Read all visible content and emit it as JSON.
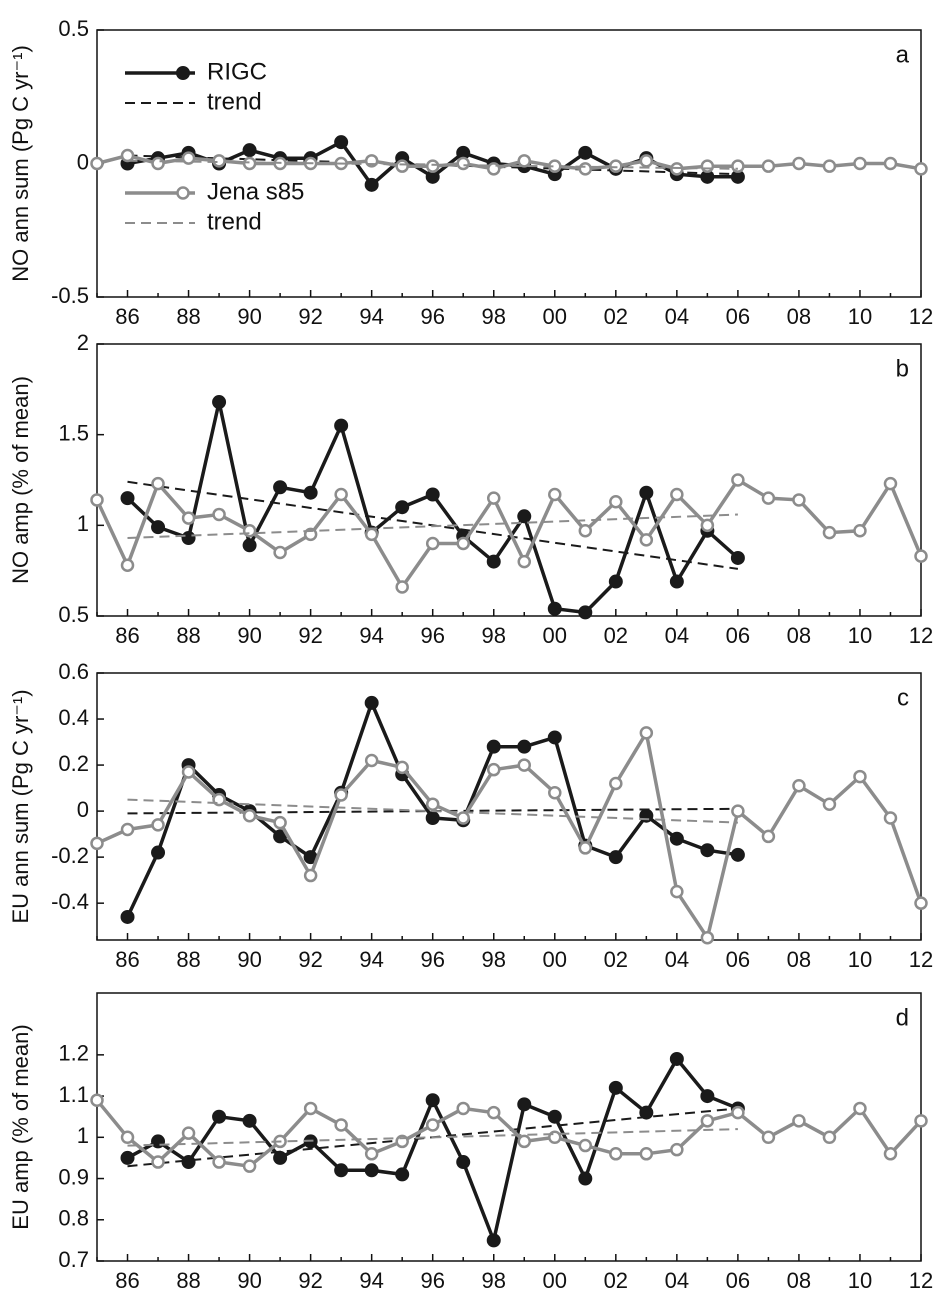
{
  "chart_data": [
    {
      "type": "line",
      "annotation": "a",
      "y_label": "NO ann sum (Pg C yr⁻¹)",
      "legend": "upper left",
      "categories": [
        null,
        "86",
        null,
        "88",
        null,
        "90",
        null,
        "92",
        null,
        "94",
        null,
        "96",
        null,
        "98",
        null,
        "00",
        null,
        "02",
        null,
        "04",
        null,
        "06",
        null,
        "08",
        null,
        "10",
        null,
        "12"
      ],
      "ylim": [
        -0.5,
        0.5
      ],
      "yticks": [
        -0.5,
        0,
        0.5
      ],
      "series": [
        {
          "name": "RIGC",
          "color": "#1a1a1a",
          "marker": "filled",
          "values": [
            null,
            0.0,
            0.02,
            0.04,
            0.0,
            0.05,
            0.02,
            0.02,
            0.08,
            -0.08,
            0.02,
            -0.05,
            0.04,
            0.0,
            -0.01,
            -0.04,
            0.04,
            -0.02,
            0.02,
            -0.04,
            -0.05,
            -0.05,
            null,
            null,
            null,
            null,
            null,
            null
          ]
        },
        {
          "name": "trend",
          "color": "#1a1a1a",
          "dashed": true,
          "x": [
            "86",
            "06"
          ],
          "values": [
            0.03,
            -0.04
          ]
        },
        {
          "name": "Jena s85",
          "color": "#8c8c8c",
          "marker": "open",
          "values": [
            0.0,
            0.03,
            0.0,
            0.02,
            0.01,
            0.0,
            0.0,
            0.0,
            0.0,
            0.01,
            -0.01,
            -0.01,
            0.0,
            -0.02,
            0.01,
            -0.01,
            -0.02,
            -0.01,
            0.01,
            -0.02,
            -0.01,
            -0.01,
            -0.01,
            0.0,
            -0.01,
            0.0,
            0.0,
            -0.02
          ]
        },
        {
          "name": "trend",
          "color": "#8c8c8c",
          "dashed": true,
          "x": [
            "86",
            "06"
          ],
          "values": [
            0.01,
            -0.02
          ]
        }
      ]
    },
    {
      "type": "line",
      "annotation": "b",
      "y_label": "NO amp (% of mean)",
      "categories": [
        null,
        "86",
        null,
        "88",
        null,
        "90",
        null,
        "92",
        null,
        "94",
        null,
        "96",
        null,
        "98",
        null,
        "00",
        null,
        "02",
        null,
        "04",
        null,
        "06",
        null,
        "08",
        null,
        "10",
        null,
        "12"
      ],
      "ylim": [
        0.5,
        2
      ],
      "yticks": [
        0.5,
        1,
        1.5,
        2
      ],
      "series": [
        {
          "color": "#1a1a1a",
          "marker": "filled",
          "values": [
            null,
            1.15,
            0.99,
            0.93,
            1.68,
            0.89,
            1.21,
            1.18,
            1.55,
            0.96,
            1.1,
            1.17,
            0.94,
            0.8,
            1.05,
            0.54,
            0.52,
            0.69,
            1.18,
            0.69,
            0.97,
            0.82,
            null,
            null,
            null,
            null,
            null,
            null
          ]
        },
        {
          "color": "#1a1a1a",
          "dashed": true,
          "x": [
            "86",
            "06"
          ],
          "values": [
            1.24,
            0.76
          ]
        },
        {
          "color": "#8c8c8c",
          "marker": "open",
          "values": [
            1.14,
            0.78,
            1.23,
            1.04,
            1.06,
            0.97,
            0.85,
            0.95,
            1.17,
            0.95,
            0.66,
            0.9,
            0.9,
            1.15,
            0.8,
            1.17,
            0.97,
            1.13,
            0.92,
            1.17,
            1.0,
            1.25,
            1.15,
            1.14,
            0.96,
            0.97,
            1.23,
            0.83
          ]
        },
        {
          "color": "#8c8c8c",
          "dashed": true,
          "x": [
            "86",
            "06"
          ],
          "values": [
            0.93,
            1.06
          ]
        }
      ]
    },
    {
      "type": "line",
      "annotation": "c",
      "y_label": "EU ann sum (Pg C yr⁻¹)",
      "categories": [
        null,
        "86",
        null,
        "88",
        null,
        "90",
        null,
        "92",
        null,
        "94",
        null,
        "96",
        null,
        "98",
        null,
        "00",
        null,
        "02",
        null,
        "04",
        null,
        "06",
        null,
        "08",
        null,
        "10",
        null,
        "12"
      ],
      "ylim": [
        -0.56,
        0.6
      ],
      "yticks": [
        -0.4,
        -0.2,
        0,
        0.2,
        0.4,
        0.6
      ],
      "series": [
        {
          "color": "#1a1a1a",
          "marker": "filled",
          "values": [
            null,
            -0.46,
            -0.18,
            0.2,
            0.07,
            0.0,
            -0.11,
            -0.2,
            0.08,
            0.47,
            0.16,
            -0.03,
            -0.04,
            0.28,
            0.28,
            0.32,
            -0.15,
            -0.2,
            -0.02,
            -0.12,
            -0.17,
            -0.19,
            null,
            null,
            null,
            null,
            null,
            null
          ]
        },
        {
          "color": "#1a1a1a",
          "dashed": true,
          "x": [
            "86",
            "06"
          ],
          "values": [
            -0.01,
            0.01
          ]
        },
        {
          "color": "#8c8c8c",
          "marker": "open",
          "values": [
            -0.14,
            -0.08,
            -0.06,
            0.17,
            0.05,
            -0.02,
            -0.05,
            -0.28,
            0.07,
            0.22,
            0.19,
            0.03,
            -0.03,
            0.18,
            0.2,
            0.08,
            -0.16,
            0.12,
            0.34,
            -0.35,
            -0.55,
            0.0,
            -0.11,
            0.11,
            0.03,
            0.15,
            -0.03,
            -0.4
          ]
        },
        {
          "color": "#8c8c8c",
          "dashed": true,
          "x": [
            "86",
            "06"
          ],
          "values": [
            0.05,
            -0.05
          ]
        }
      ]
    },
    {
      "type": "line",
      "annotation": "d",
      "y_label": "EU amp (% of mean)",
      "categories": [
        null,
        "86",
        null,
        "88",
        null,
        "90",
        null,
        "92",
        null,
        "94",
        null,
        "96",
        null,
        "98",
        null,
        "00",
        null,
        "02",
        null,
        "04",
        null,
        "06",
        null,
        "08",
        null,
        "10",
        null,
        "12"
      ],
      "ylim": [
        0.7,
        1.35
      ],
      "yticks": [
        0.7,
        0.8,
        0.9,
        1,
        1.1,
        1.2
      ],
      "series": [
        {
          "color": "#1a1a1a",
          "marker": "filled",
          "values": [
            null,
            0.95,
            0.99,
            0.94,
            1.05,
            1.04,
            0.95,
            0.99,
            0.92,
            0.92,
            0.91,
            1.09,
            0.94,
            0.75,
            1.08,
            1.05,
            0.9,
            1.12,
            1.06,
            1.19,
            1.1,
            1.07,
            null,
            null,
            null,
            null,
            null,
            null
          ]
        },
        {
          "color": "#1a1a1a",
          "dashed": true,
          "x": [
            "86",
            "06"
          ],
          "values": [
            0.93,
            1.07
          ]
        },
        {
          "color": "#8c8c8c",
          "marker": "open",
          "values": [
            1.09,
            1.0,
            0.94,
            1.01,
            0.94,
            0.93,
            0.99,
            1.07,
            1.03,
            0.96,
            0.99,
            1.03,
            1.07,
            1.06,
            0.99,
            1.0,
            0.98,
            0.96,
            0.96,
            0.97,
            1.04,
            1.06,
            1.0,
            1.04,
            1.0,
            1.07,
            0.96,
            1.04
          ]
        },
        {
          "color": "#8c8c8c",
          "dashed": true,
          "x": [
            "86",
            "06"
          ],
          "values": [
            0.98,
            1.02
          ]
        }
      ]
    }
  ]
}
